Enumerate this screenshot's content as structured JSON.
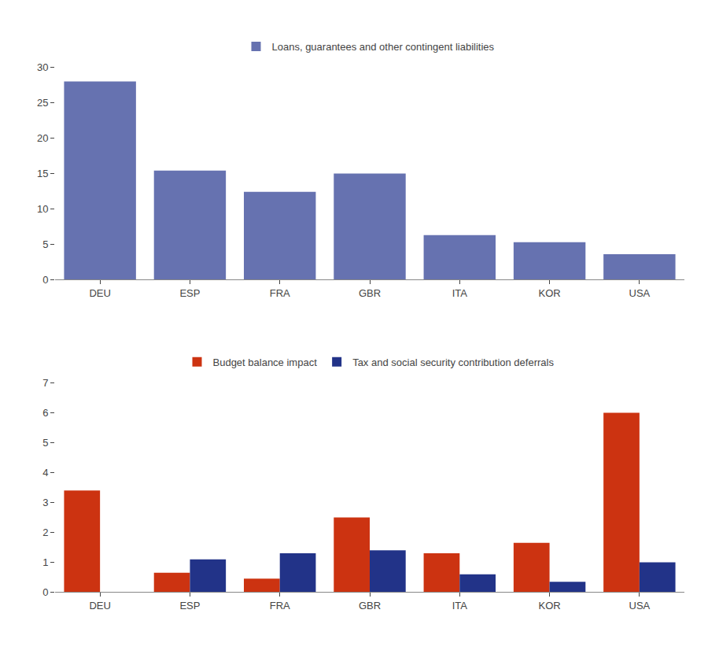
{
  "chart_data": [
    {
      "type": "bar",
      "categories": [
        "DEU",
        "ESP",
        "FRA",
        "GBR",
        "ITA",
        "KOR",
        "USA"
      ],
      "series": [
        {
          "name": "Loans, guarantees and other contingent liabilities",
          "color": "#6672B0",
          "values": [
            28.0,
            15.4,
            12.4,
            15.0,
            6.3,
            5.3,
            3.6
          ]
        }
      ],
      "ylim": [
        0,
        30
      ],
      "yticks": [
        0,
        5,
        10,
        15,
        20,
        25,
        30
      ],
      "grid": false,
      "legend": "top"
    },
    {
      "type": "bar",
      "categories": [
        "DEU",
        "ESP",
        "FRA",
        "GBR",
        "ITA",
        "KOR",
        "USA"
      ],
      "series": [
        {
          "name": "Budget balance impact",
          "color": "#CC3311",
          "values": [
            3.4,
            0.65,
            0.45,
            2.5,
            1.3,
            1.65,
            6.0
          ]
        },
        {
          "name": "Tax and social security contribution deferrals",
          "color": "#223388",
          "values": [
            0.0,
            1.1,
            1.3,
            1.4,
            0.6,
            0.35,
            1.0
          ]
        }
      ],
      "ylim": [
        0,
        7
      ],
      "yticks": [
        0,
        1,
        2,
        3,
        4,
        5,
        6,
        7
      ],
      "stacked": false,
      "grid": false,
      "legend": "top"
    }
  ]
}
